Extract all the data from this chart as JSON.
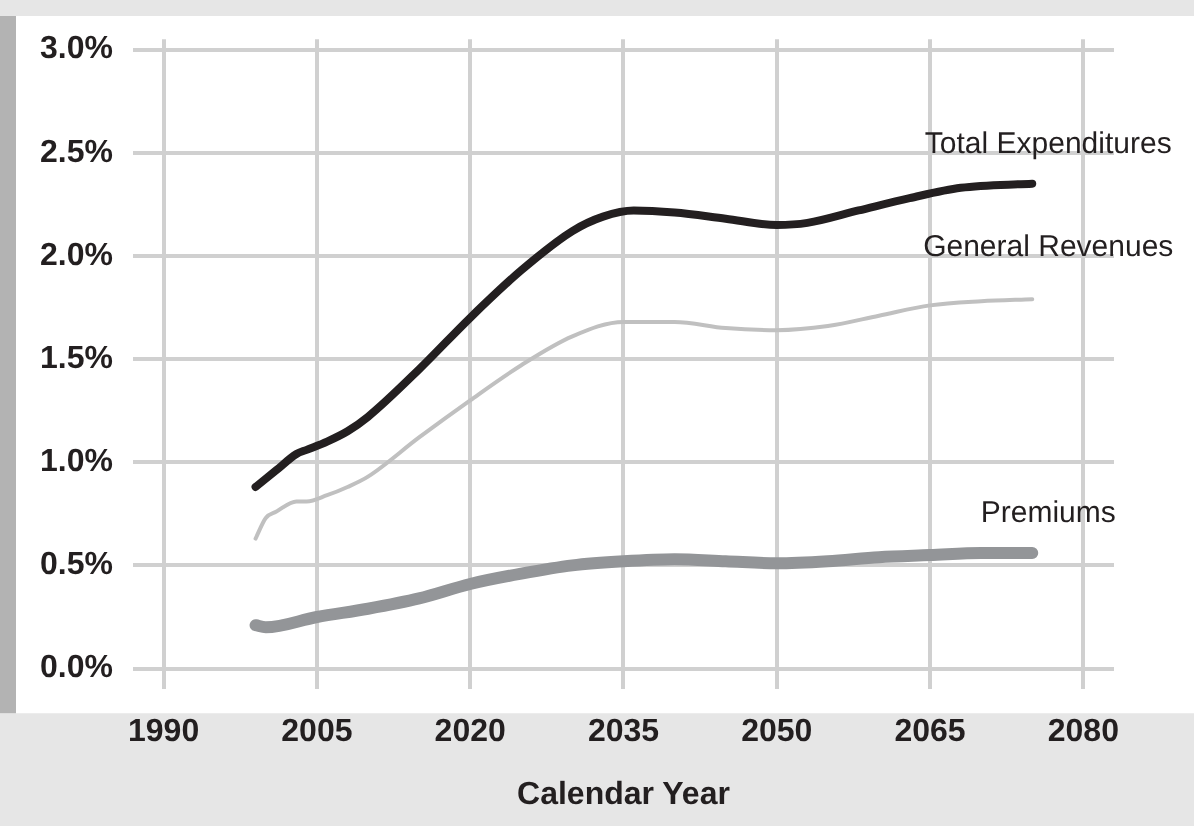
{
  "chart_data": {
    "type": "line",
    "xlabel": "Calendar Year",
    "xlim": [
      1987,
      2083
    ],
    "xticks": [
      1990,
      2005,
      2020,
      2035,
      2050,
      2065,
      2080
    ],
    "ylim": [
      -0.1,
      3.05
    ],
    "yticks": [
      {
        "value": 0,
        "label": "0.0%"
      },
      {
        "value": 0.5,
        "label": "0.5%"
      },
      {
        "value": 1,
        "label": "1.0%"
      },
      {
        "value": 1.5,
        "label": "1.5%"
      },
      {
        "value": 2,
        "label": "2.0%"
      },
      {
        "value": 2.5,
        "label": "2.5%"
      },
      {
        "value": 3,
        "label": "3.0%"
      }
    ],
    "grid": true,
    "legend": false,
    "marker": "none",
    "line_style": "solid",
    "series": [
      {
        "name": "Total Expenditures",
        "color": "#231f20",
        "x": [
          1999,
          2001,
          2003,
          2004,
          2006,
          2008,
          2010,
          2015,
          2020,
          2025,
          2030,
          2033,
          2036,
          2040,
          2045,
          2050,
          2053,
          2058,
          2063,
          2068,
          2075
        ],
        "values": [
          0.88,
          0.96,
          1.04,
          1.06,
          1.1,
          1.15,
          1.22,
          1.45,
          1.7,
          1.93,
          2.12,
          2.19,
          2.22,
          2.21,
          2.18,
          2.15,
          2.16,
          2.22,
          2.28,
          2.33,
          2.35
        ]
      },
      {
        "name": "General Revenues",
        "color": "#c0c0c0",
        "x": [
          1999,
          2000,
          2001,
          2003,
          2004,
          2006,
          2008,
          2010,
          2015,
          2020,
          2025,
          2030,
          2035,
          2040,
          2045,
          2050,
          2055,
          2060,
          2065,
          2070,
          2075
        ],
        "values": [
          0.63,
          0.73,
          0.76,
          0.81,
          0.81,
          0.84,
          0.88,
          0.93,
          1.12,
          1.3,
          1.47,
          1.61,
          1.68,
          1.68,
          1.65,
          1.64,
          1.66,
          1.71,
          1.76,
          1.78,
          1.79
        ]
      },
      {
        "name": "Premiums",
        "color": "#939598",
        "x": [
          1999,
          2000,
          2005,
          2010,
          2015,
          2020,
          2025,
          2030,
          2035,
          2040,
          2045,
          2050,
          2055,
          2060,
          2065,
          2070,
          2075
        ],
        "values": [
          0.21,
          0.2,
          0.25,
          0.29,
          0.34,
          0.41,
          0.46,
          0.5,
          0.52,
          0.53,
          0.52,
          0.51,
          0.52,
          0.54,
          0.55,
          0.56,
          0.56
        ]
      }
    ]
  }
}
